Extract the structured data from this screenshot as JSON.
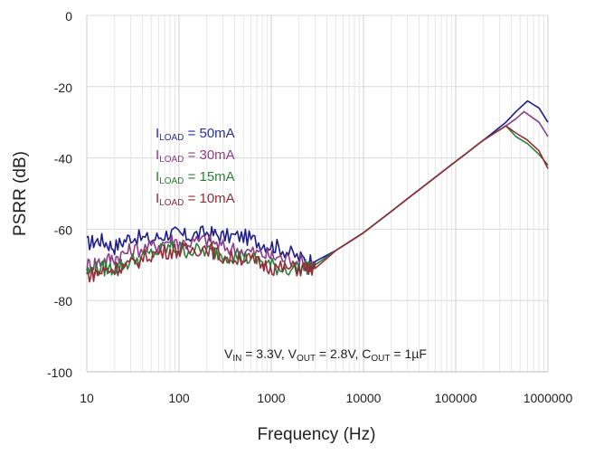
{
  "chart_data": {
    "type": "line",
    "xlabel": "Frequency (Hz)",
    "ylabel": "PSRR (dB)",
    "xscale": "log",
    "xlim": [
      10,
      1000000
    ],
    "ylim": [
      -100,
      0
    ],
    "x_ticks": [
      10,
      100,
      1000,
      10000,
      100000,
      1000000
    ],
    "x_tick_labels": [
      "10",
      "100",
      "1000",
      "10000",
      "100000",
      "1000000"
    ],
    "y_ticks": [
      0,
      -20,
      -40,
      -60,
      -80,
      -100
    ],
    "y_tick_labels": [
      "0",
      "-20",
      "-40",
      "-60",
      "-80",
      "-100"
    ],
    "grid": true,
    "legend": {
      "placement": "upper-left inside plot",
      "entries": [
        {
          "prefix": "I",
          "subscript": "LOAD",
          "suffix": " = 50mA",
          "color": "#2a2f8f"
        },
        {
          "prefix": "I",
          "subscript": "LOAD",
          "suffix": " = 30mA",
          "color": "#8a3f86"
        },
        {
          "prefix": "I",
          "subscript": "LOAD",
          "suffix": " = 15mA",
          "color": "#2f7d3a"
        },
        {
          "prefix": "I",
          "subscript": "LOAD",
          "suffix": " = 10mA",
          "color": "#8f2f3a"
        }
      ]
    },
    "annotation": {
      "parts": [
        {
          "t": "V",
          "sub": false
        },
        {
          "t": "IN",
          "sub": true
        },
        {
          "t": " = 3.3V, V",
          "sub": false
        },
        {
          "t": "OUT",
          "sub": true
        },
        {
          "t": " = 2.8V, C",
          "sub": false
        },
        {
          "t": "OUT",
          "sub": true
        },
        {
          "t": " = 1µF",
          "sub": false
        }
      ]
    },
    "series": [
      {
        "name": "ILOAD = 50mA",
        "color": "#1e1e8a",
        "points": [
          [
            10,
            -64
          ],
          [
            14,
            -63
          ],
          [
            20,
            -65
          ],
          [
            30,
            -62
          ],
          [
            50,
            -63
          ],
          [
            80,
            -61
          ],
          [
            120,
            -62
          ],
          [
            200,
            -61
          ],
          [
            300,
            -62
          ],
          [
            500,
            -62
          ],
          [
            800,
            -64
          ],
          [
            1200,
            -65
          ],
          [
            2000,
            -68
          ],
          [
            3000,
            -69
          ],
          [
            5000,
            -66
          ],
          [
            10000,
            -61
          ],
          [
            20000,
            -55
          ],
          [
            50000,
            -47
          ],
          [
            100000,
            -41
          ],
          [
            200000,
            -35
          ],
          [
            350000,
            -30
          ],
          [
            450000,
            -27
          ],
          [
            600000,
            -24
          ],
          [
            800000,
            -26
          ],
          [
            1000000,
            -30
          ]
        ]
      },
      {
        "name": "ILOAD = 30mA",
        "color": "#8a3f86",
        "points": [
          [
            10,
            -70
          ],
          [
            14,
            -69
          ],
          [
            20,
            -68
          ],
          [
            30,
            -66
          ],
          [
            50,
            -65
          ],
          [
            80,
            -63
          ],
          [
            120,
            -64
          ],
          [
            200,
            -63
          ],
          [
            300,
            -65
          ],
          [
            500,
            -66
          ],
          [
            800,
            -67
          ],
          [
            1200,
            -68
          ],
          [
            2000,
            -69
          ],
          [
            3000,
            -70
          ],
          [
            5000,
            -66
          ],
          [
            10000,
            -61
          ],
          [
            20000,
            -55
          ],
          [
            50000,
            -47
          ],
          [
            100000,
            -41
          ],
          [
            200000,
            -35
          ],
          [
            350000,
            -31
          ],
          [
            450000,
            -29
          ],
          [
            550000,
            -27
          ],
          [
            800000,
            -30
          ],
          [
            1000000,
            -34
          ]
        ]
      },
      {
        "name": "ILOAD = 15mA",
        "color": "#2f7d3a",
        "points": [
          [
            10,
            -72
          ],
          [
            14,
            -71
          ],
          [
            20,
            -71
          ],
          [
            30,
            -69
          ],
          [
            50,
            -67
          ],
          [
            80,
            -65
          ],
          [
            120,
            -66
          ],
          [
            200,
            -66
          ],
          [
            300,
            -67
          ],
          [
            500,
            -68
          ],
          [
            800,
            -69
          ],
          [
            1200,
            -71
          ],
          [
            2000,
            -71
          ],
          [
            3000,
            -70
          ],
          [
            5000,
            -66
          ],
          [
            10000,
            -61
          ],
          [
            20000,
            -55
          ],
          [
            50000,
            -47
          ],
          [
            100000,
            -41
          ],
          [
            200000,
            -35
          ],
          [
            350000,
            -31
          ],
          [
            450000,
            -34
          ],
          [
            600000,
            -36
          ],
          [
            800000,
            -39
          ],
          [
            1000000,
            -42
          ]
        ]
      },
      {
        "name": "ILOAD = 10mA",
        "color": "#8f2f3a",
        "points": [
          [
            10,
            -73
          ],
          [
            14,
            -72
          ],
          [
            20,
            -71
          ],
          [
            30,
            -70
          ],
          [
            50,
            -67
          ],
          [
            80,
            -66
          ],
          [
            120,
            -66
          ],
          [
            200,
            -65
          ],
          [
            300,
            -68
          ],
          [
            500,
            -68
          ],
          [
            800,
            -70
          ],
          [
            1200,
            -71
          ],
          [
            2000,
            -71
          ],
          [
            3000,
            -71
          ],
          [
            5000,
            -66
          ],
          [
            10000,
            -61
          ],
          [
            20000,
            -55
          ],
          [
            50000,
            -47
          ],
          [
            100000,
            -41
          ],
          [
            200000,
            -35
          ],
          [
            350000,
            -31
          ],
          [
            450000,
            -33
          ],
          [
            600000,
            -35
          ],
          [
            800000,
            -38
          ],
          [
            1000000,
            -43
          ]
        ]
      }
    ]
  }
}
